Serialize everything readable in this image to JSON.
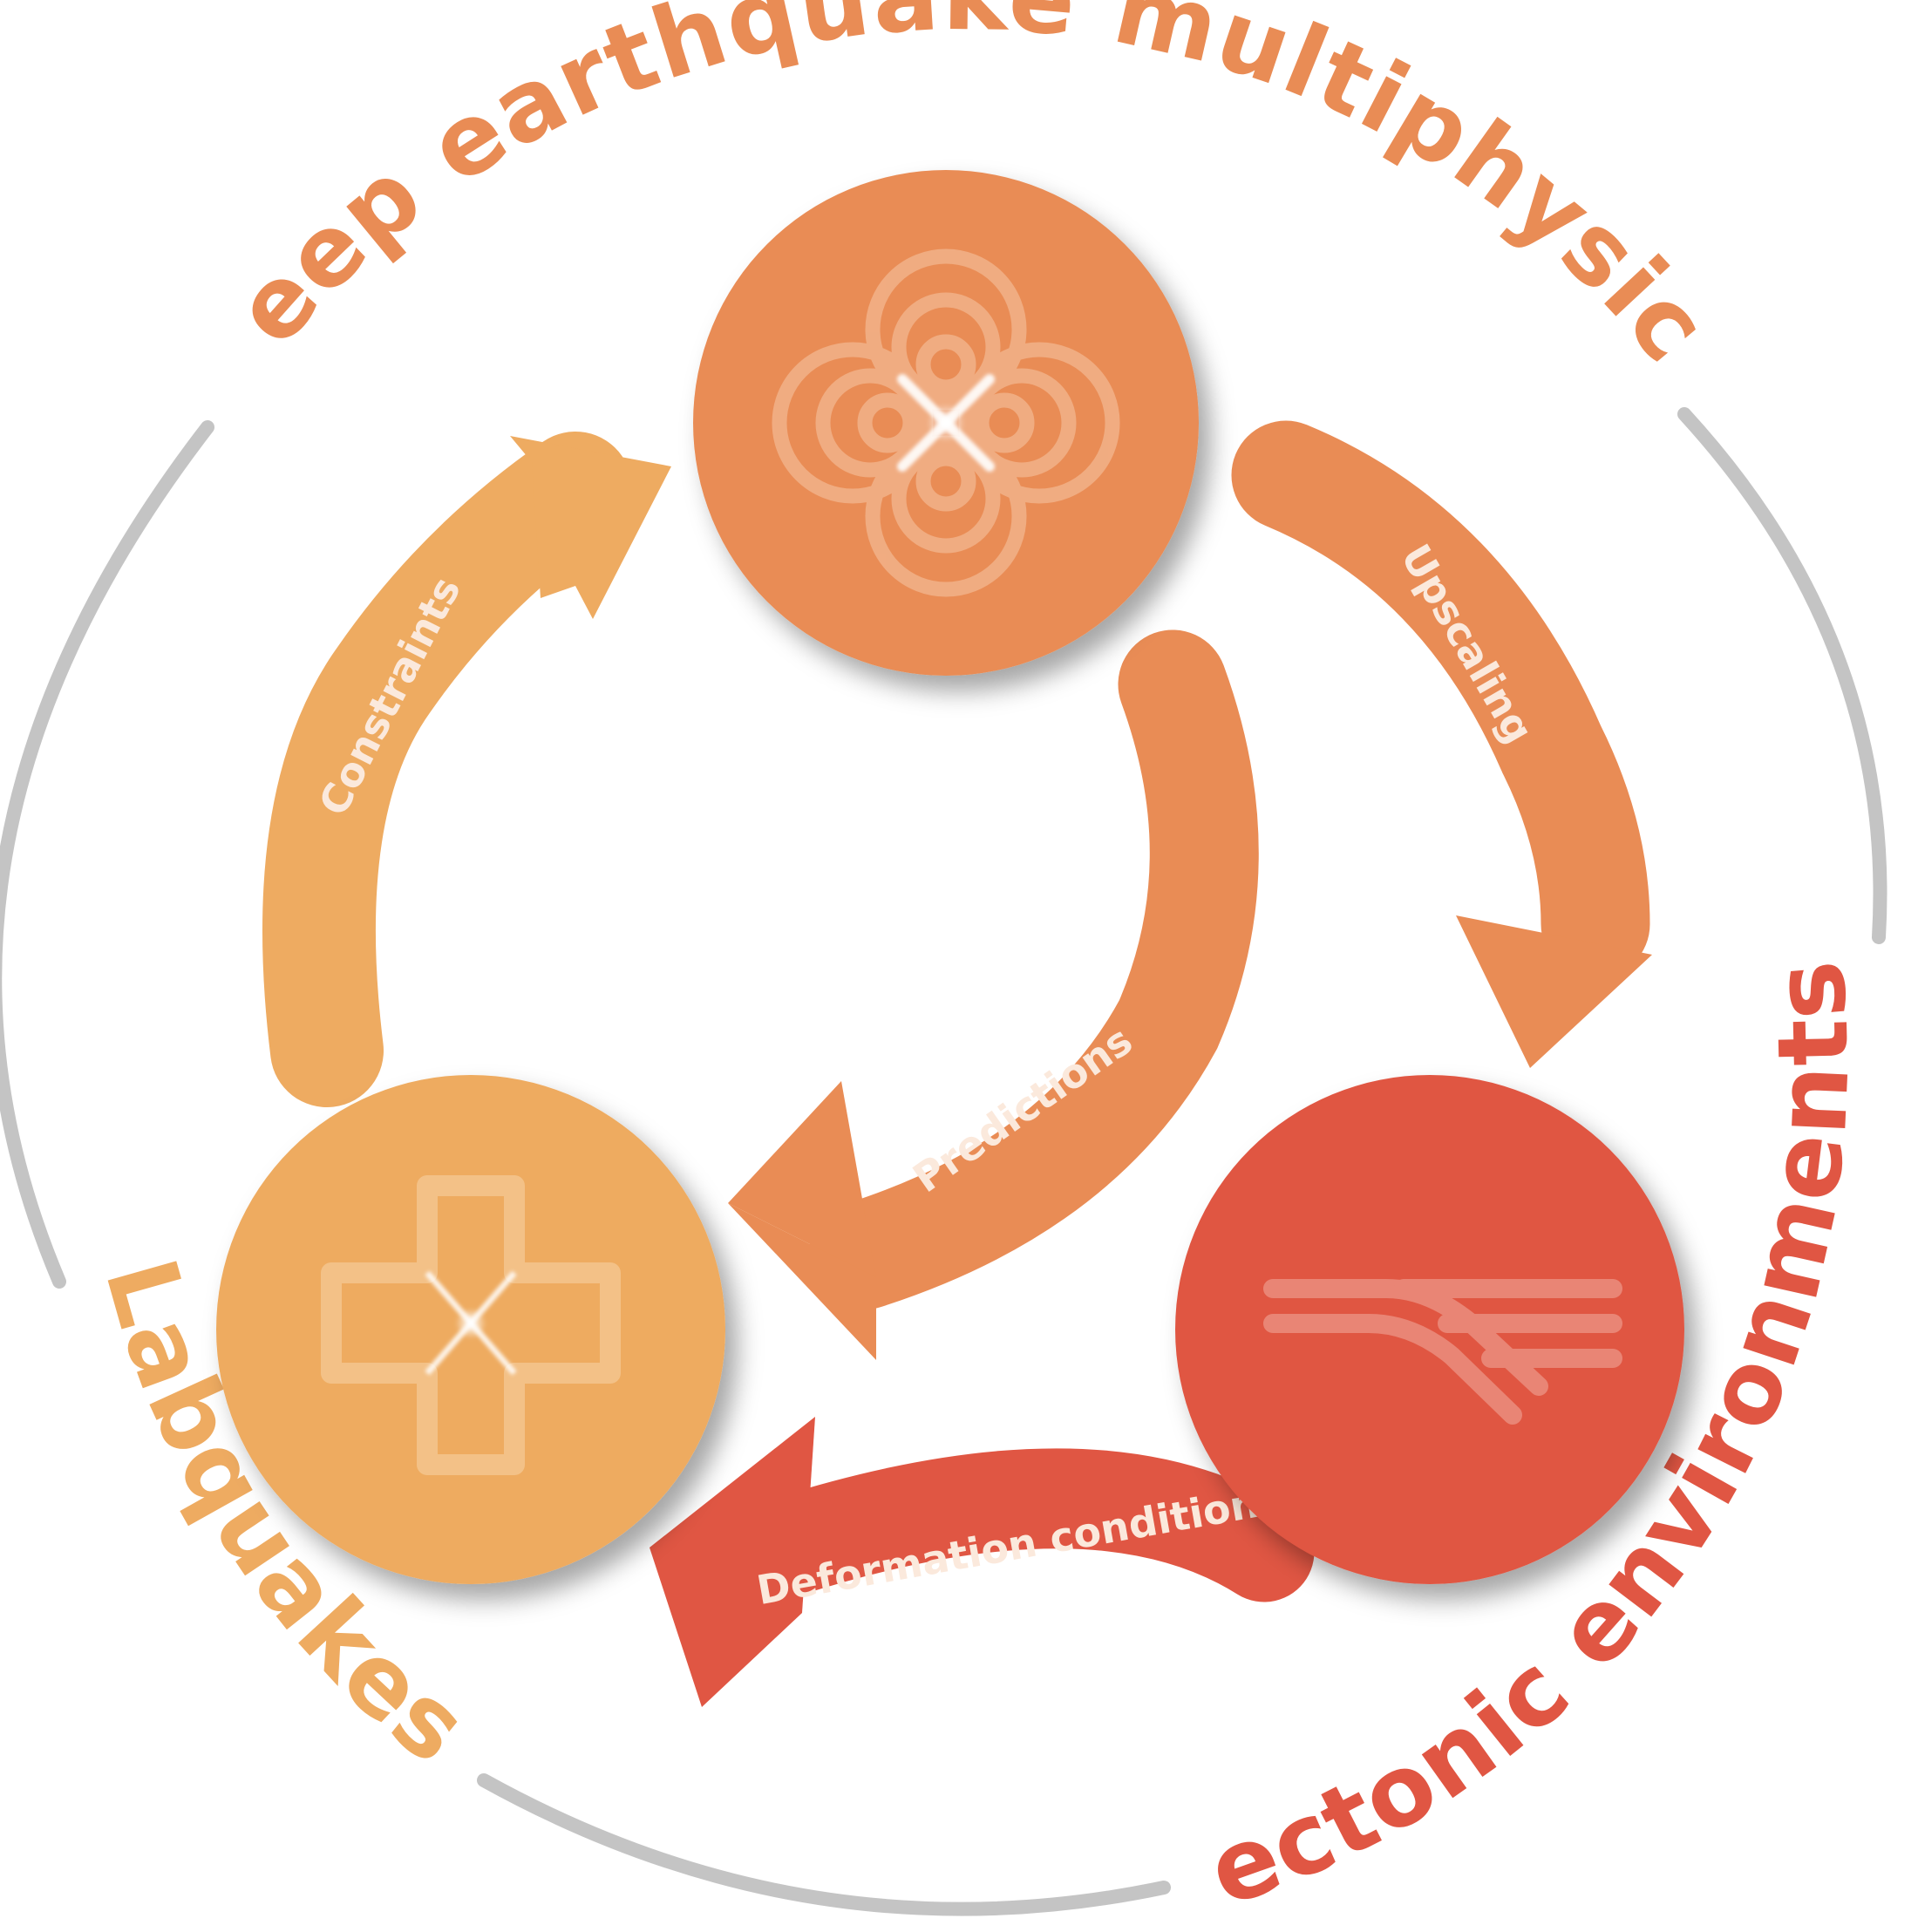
{
  "diagram": {
    "nodes": [
      {
        "id": "multiphysics",
        "label": "Deep earthquake multiphysics",
        "color": "#e98c55"
      },
      {
        "id": "tectonic",
        "label": "Tectonic environments",
        "color": "#e05643"
      },
      {
        "id": "labquakes",
        "label": "Labquakes",
        "color": "#eeab61"
      }
    ],
    "edges": [
      {
        "id": "constraints",
        "label": "Constraints",
        "from": "labquakes",
        "to": "multiphysics",
        "color": "#eeab61"
      },
      {
        "id": "upscaling",
        "label": "Upscaling",
        "from": "multiphysics",
        "to": "tectonic",
        "color": "#e98c55"
      },
      {
        "id": "predictions",
        "label": "Predictions",
        "from": "multiphysics",
        "to": "labquakes",
        "color": "#e98c55"
      },
      {
        "id": "deformation",
        "label": "Deformation conditions",
        "from": "tectonic",
        "to": "labquakes",
        "color": "#e05643"
      }
    ],
    "ring_color": "#c4c4c4",
    "icons": {
      "multiphysics": "ripple-clover-icon",
      "labquakes": "cross-shape-icon",
      "tectonic": "subduction-lines-icon"
    }
  }
}
